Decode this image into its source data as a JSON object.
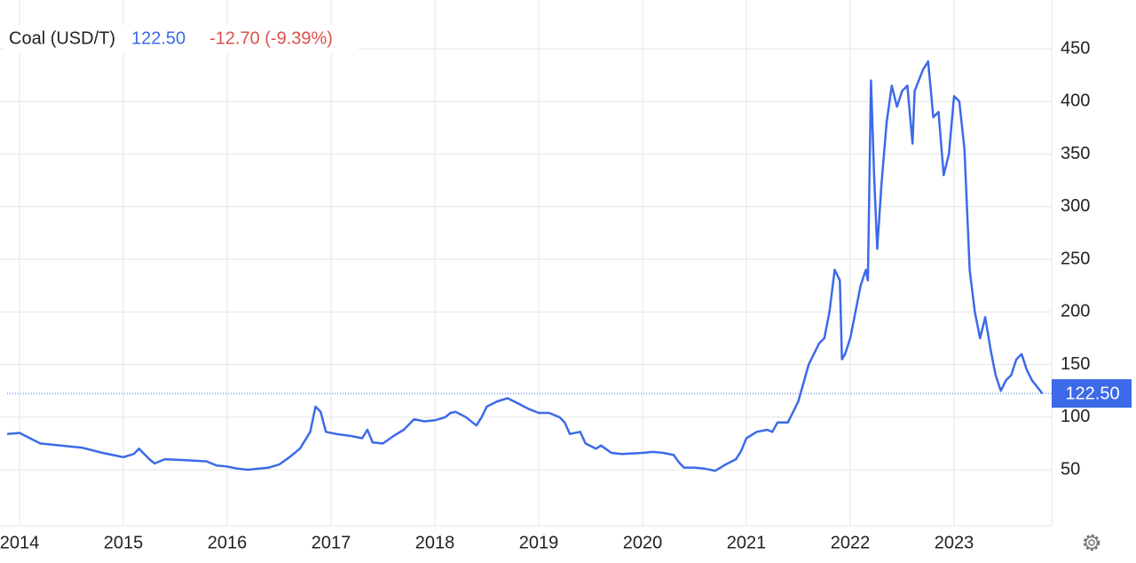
{
  "chart_data": {
    "type": "line",
    "title": "Coal (USD/T)",
    "last": {
      "value": 122.5,
      "label": "122.50"
    },
    "change": "-12.70 (-9.39%)",
    "x": [
      2013.88,
      2014.0,
      2014.1,
      2014.2,
      2014.4,
      2014.6,
      2014.8,
      2015.0,
      2015.1,
      2015.15,
      2015.25,
      2015.3,
      2015.4,
      2015.6,
      2015.8,
      2015.9,
      2016.0,
      2016.1,
      2016.2,
      2016.4,
      2016.5,
      2016.6,
      2016.7,
      2016.8,
      2016.85,
      2016.9,
      2016.95,
      2017.05,
      2017.2,
      2017.3,
      2017.35,
      2017.4,
      2017.5,
      2017.6,
      2017.7,
      2017.8,
      2017.9,
      2018.0,
      2018.1,
      2018.15,
      2018.2,
      2018.3,
      2018.4,
      2018.45,
      2018.5,
      2018.6,
      2018.7,
      2018.8,
      2018.9,
      2019.0,
      2019.1,
      2019.2,
      2019.25,
      2019.3,
      2019.4,
      2019.45,
      2019.55,
      2019.6,
      2019.7,
      2019.8,
      2020.0,
      2020.1,
      2020.2,
      2020.3,
      2020.35,
      2020.4,
      2020.5,
      2020.6,
      2020.7,
      2020.8,
      2020.9,
      2020.95,
      2021.0,
      2021.1,
      2021.2,
      2021.25,
      2021.3,
      2021.4,
      2021.5,
      2021.6,
      2021.7,
      2021.75,
      2021.8,
      2021.85,
      2021.9,
      2021.92,
      2021.95,
      2022.0,
      2022.05,
      2022.1,
      2022.15,
      2022.17,
      2022.2,
      2022.23,
      2022.26,
      2022.3,
      2022.35,
      2022.4,
      2022.45,
      2022.5,
      2022.55,
      2022.6,
      2022.62,
      2022.7,
      2022.75,
      2022.8,
      2022.85,
      2022.9,
      2022.95,
      2023.0,
      2023.05,
      2023.1,
      2023.15,
      2023.2,
      2023.25,
      2023.3,
      2023.35,
      2023.4,
      2023.45,
      2023.5,
      2023.55,
      2023.6,
      2023.65,
      2023.7,
      2023.75,
      2023.85
    ],
    "series": [
      {
        "color": "#3c6ae8",
        "values": [
          84,
          85,
          80,
          75,
          73,
          71,
          66,
          62,
          65,
          70,
          60,
          56,
          60,
          59,
          58,
          54,
          53,
          51,
          50,
          52,
          55,
          62,
          70,
          86,
          110,
          105,
          86,
          84,
          82,
          80,
          88,
          76,
          75,
          82,
          88,
          98,
          96,
          97,
          100,
          104,
          105,
          100,
          92,
          100,
          110,
          115,
          118,
          113,
          108,
          104,
          104,
          100,
          95,
          84,
          86,
          75,
          70,
          73,
          66,
          65,
          66,
          67,
          66,
          64,
          57,
          52,
          52,
          51,
          49,
          55,
          60,
          68,
          80,
          86,
          88,
          86,
          95,
          95,
          115,
          150,
          170,
          175,
          200,
          240,
          230,
          155,
          160,
          175,
          200,
          225,
          240,
          230,
          420,
          330,
          260,
          320,
          380,
          415,
          395,
          410,
          415,
          360,
          410,
          430,
          438,
          385,
          390,
          330,
          350,
          405,
          400,
          355,
          240,
          200,
          175,
          195,
          165,
          140,
          125,
          135,
          140,
          155,
          160,
          145,
          135,
          122.5
        ]
      }
    ],
    "xlim": [
      2013.88,
      2023.94
    ],
    "xticks": [
      2014,
      2015,
      2016,
      2017,
      2018,
      2019,
      2020,
      2021,
      2022,
      2023
    ],
    "ylim": [
      0,
      480
    ],
    "yticks": [
      50,
      100,
      150,
      200,
      250,
      300,
      350,
      400,
      450
    ],
    "grid": true
  }
}
